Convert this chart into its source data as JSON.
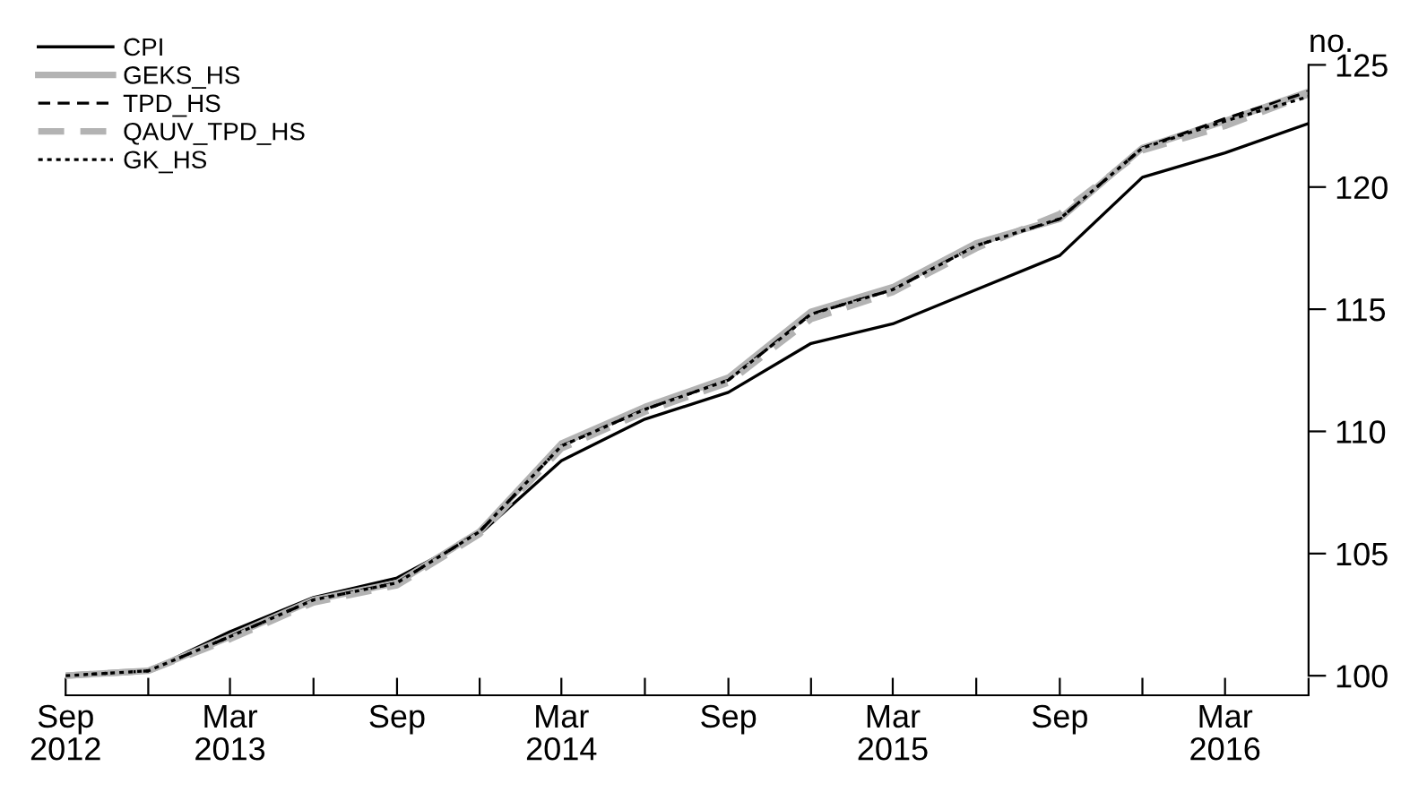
{
  "chart_data": {
    "type": "line",
    "ylabel": "no.",
    "x": [
      "2012-09",
      "2012-12",
      "2013-03",
      "2013-06",
      "2013-09",
      "2013-12",
      "2014-03",
      "2014-06",
      "2014-09",
      "2014-12",
      "2015-03",
      "2015-06",
      "2015-09",
      "2015-12",
      "2016-03",
      "2016-06"
    ],
    "series": [
      {
        "name": "CPI",
        "color": "#000000",
        "line_style": "solid",
        "values": [
          100.0,
          100.2,
          101.8,
          103.2,
          104.0,
          105.8,
          108.8,
          110.5,
          111.6,
          113.6,
          114.4,
          115.8,
          117.2,
          120.4,
          121.4,
          122.6
        ]
      },
      {
        "name": "GEKS_HS",
        "color": "#b3b3b3",
        "line_style": "solid",
        "values": [
          100.0,
          100.2,
          101.6,
          103.1,
          103.8,
          105.9,
          109.5,
          111.0,
          112.2,
          114.9,
          115.9,
          117.7,
          118.7,
          121.6,
          122.7,
          123.9
        ]
      },
      {
        "name": "TPD_HS",
        "color": "#000000",
        "line_style": "dashed",
        "values": [
          100.0,
          100.2,
          101.6,
          103.1,
          103.8,
          105.9,
          109.4,
          110.9,
          112.1,
          114.8,
          115.8,
          117.6,
          118.7,
          121.6,
          122.8,
          123.9
        ]
      },
      {
        "name": "QAUV_TPD_HS",
        "color": "#b3b3b3",
        "line_style": "dashed",
        "values": [
          100.0,
          100.2,
          101.5,
          103.0,
          103.7,
          105.8,
          109.3,
          110.8,
          112.0,
          114.6,
          115.7,
          117.5,
          118.9,
          121.5,
          122.5,
          123.8
        ]
      },
      {
        "name": "GK_HS",
        "color": "#000000",
        "line_style": "dotted",
        "values": [
          100.0,
          100.2,
          101.6,
          103.1,
          103.8,
          105.9,
          109.4,
          110.9,
          112.1,
          114.8,
          115.8,
          117.6,
          118.7,
          121.6,
          122.7,
          123.7
        ]
      }
    ],
    "xlim": [
      "2012-09",
      "2016-06"
    ],
    "xticks": [
      {
        "value": "2012-09",
        "label": "Sep\n2012"
      },
      {
        "value": "2012-12",
        "label": null
      },
      {
        "value": "2013-03",
        "label": "Mar\n2013"
      },
      {
        "value": "2013-06",
        "label": null
      },
      {
        "value": "2013-09",
        "label": "Sep"
      },
      {
        "value": "2013-12",
        "label": null
      },
      {
        "value": "2014-03",
        "label": "Mar\n2014"
      },
      {
        "value": "2014-06",
        "label": null
      },
      {
        "value": "2014-09",
        "label": "Sep"
      },
      {
        "value": "2014-12",
        "label": null
      },
      {
        "value": "2015-03",
        "label": "Mar\n2015"
      },
      {
        "value": "2015-06",
        "label": null
      },
      {
        "value": "2015-09",
        "label": "Sep"
      },
      {
        "value": "2015-12",
        "label": null
      },
      {
        "value": "2016-03",
        "label": "Mar\n2016"
      },
      {
        "value": "2016-06",
        "label": null
      }
    ],
    "ylim": [
      99.2,
      125
    ],
    "yticks": [
      100,
      105,
      110,
      115,
      120,
      125
    ],
    "grid": false,
    "legend": "top left",
    "marker": "none"
  }
}
